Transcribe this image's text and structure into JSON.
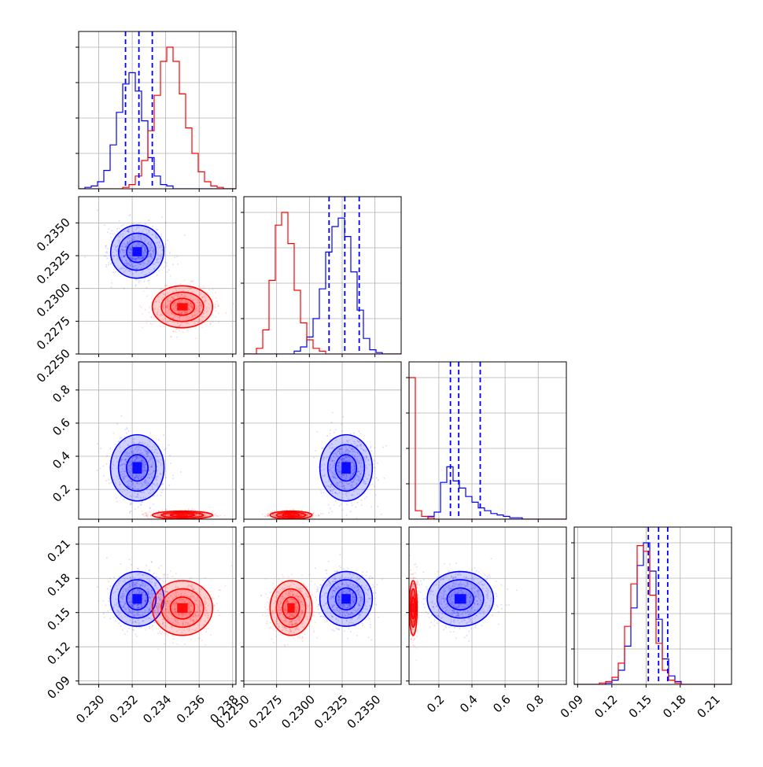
{
  "colors": {
    "blue": "#0000ff",
    "red": "#ff0000",
    "grid": "#b0b0b0",
    "frame": "#000000"
  },
  "chart_data": {
    "type": "corner",
    "grid": true,
    "legend": "none",
    "variables": [
      {
        "range": [
          0.2288,
          0.2382
        ],
        "ticks": [
          "0.230",
          "0.232",
          "0.234",
          "0.236",
          "0.238"
        ]
      },
      {
        "range": [
          0.225,
          0.237
        ],
        "ticks": [
          "0.2250",
          "0.2275",
          "0.2300",
          "0.2325",
          "0.2350"
        ]
      },
      {
        "range": [
          0.02,
          0.97
        ],
        "ticks": [
          "0.2",
          "0.4",
          "0.6",
          "0.8"
        ]
      },
      {
        "range": [
          0.087,
          0.225
        ],
        "ticks": [
          "0.09",
          "0.12",
          "0.15",
          "0.18",
          "0.21"
        ]
      }
    ],
    "quantiles": [
      [
        0.2316,
        0.2324,
        0.2332
      ],
      [
        0.2315,
        0.2327,
        0.2338
      ],
      [
        0.27,
        0.32,
        0.45
      ],
      [
        0.152,
        0.161,
        0.169
      ]
    ],
    "samples": [
      {
        "color": "blue",
        "mean": [
          0.2323,
          0.2328,
          0.33,
          0.162
        ],
        "sd": [
          0.0008,
          0.001,
          0.1,
          0.012
        ]
      },
      {
        "color": "red",
        "mean": [
          0.235,
          0.2286,
          0.045,
          0.154
        ],
        "sd": [
          0.0009,
          0.0008,
          0.012,
          0.012
        ]
      }
    ],
    "histograms": [
      {
        "bin_range": [
          0.2288,
          0.2382
        ],
        "series": [
          {
            "color": "blue",
            "values": [
              0,
              1,
              2,
              5,
              13,
              31,
              54,
              74,
              82,
              69,
              48,
              22,
              9,
              3,
              2,
              0,
              0,
              0,
              0,
              0,
              0,
              0,
              0,
              0,
              0
            ]
          },
          {
            "color": "red",
            "values": [
              0,
              0,
              0,
              0,
              0,
              0,
              0,
              1,
              3,
              9,
              20,
              41,
              66,
              90,
              100,
              90,
              67,
              43,
              25,
              12,
              5,
              2,
              1,
              0,
              0
            ]
          }
        ]
      },
      {
        "bin_range": [
          0.225,
          0.237
        ],
        "series": [
          {
            "color": "blue",
            "values": [
              0,
              0,
              0,
              0,
              0,
              0,
              0,
              0,
              2,
              5,
              12,
              25,
              46,
              72,
              90,
              96,
              83,
              58,
              31,
              11,
              3,
              1,
              0,
              0,
              0
            ]
          },
          {
            "color": "red",
            "values": [
              0,
              0,
              4,
              17,
              52,
              91,
              100,
              78,
              45,
              22,
              10,
              4,
              2,
              0,
              0,
              0,
              0,
              0,
              0,
              0,
              0,
              0,
              0,
              0,
              0
            ]
          }
        ]
      },
      {
        "bin_range": [
          0.02,
          0.97
        ],
        "series": [
          {
            "color": "blue",
            "values": [
              0,
              0,
              0,
              2,
              5,
              26,
              37,
              27,
              22,
              16,
              12,
              8,
              6,
              4,
              3,
              2,
              1,
              1,
              0,
              0,
              0,
              0,
              0,
              0,
              0
            ]
          },
          {
            "color": "red",
            "values": [
              100,
              6,
              2,
              1,
              0,
              0,
              0,
              0,
              0,
              0,
              0,
              0,
              0,
              0,
              0,
              0,
              0,
              0,
              0,
              0,
              0,
              0,
              0,
              0,
              0
            ]
          }
        ]
      },
      {
        "bin_range": [
          0.087,
          0.225
        ],
        "series": [
          {
            "color": "blue",
            "values": [
              0,
              0,
              0,
              0,
              0,
              1,
              3,
              10,
              27,
              54,
              84,
              100,
              80,
              46,
              18,
              6,
              2,
              0,
              0,
              0,
              0,
              0,
              0,
              0,
              0
            ]
          },
          {
            "color": "red",
            "values": [
              0,
              0,
              0,
              0,
              1,
              2,
              5,
              15,
              41,
              71,
              98,
              94,
              63,
              29,
              10,
              3,
              1,
              0,
              0,
              0,
              0,
              0,
              0,
              0,
              0
            ]
          }
        ]
      }
    ]
  }
}
